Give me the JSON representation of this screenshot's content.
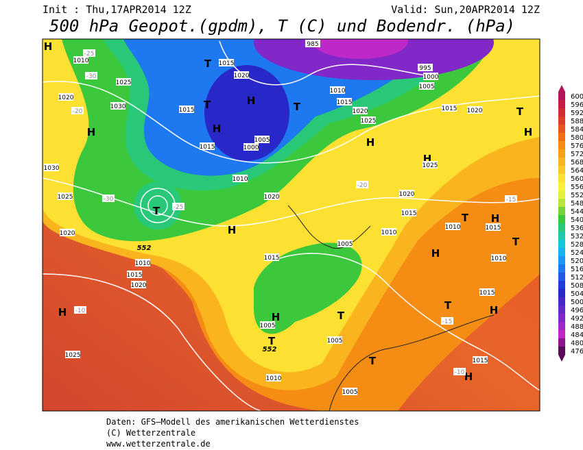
{
  "header": {
    "init": "Init : Thu,17APR2014 12Z",
    "valid": "Valid: Sun,20APR2014 12Z",
    "title": "500 hPa Geopot.(gpdm), T (C) und Bodendr. (hPa)"
  },
  "colorbar": {
    "levels": [
      600,
      596,
      592,
      588,
      584,
      580,
      576,
      572,
      568,
      564,
      560,
      556,
      552,
      548,
      544,
      540,
      536,
      532,
      528,
      524,
      520,
      516,
      512,
      508,
      504,
      500,
      496,
      492,
      488,
      484,
      480,
      476
    ],
    "colors": [
      "#b4145a",
      "#c81e46",
      "#d22d32",
      "#dc3c28",
      "#e6551e",
      "#f06e14",
      "#f58c14",
      "#f8a014",
      "#fab41e",
      "#fcc828",
      "#fde132",
      "#fff03c",
      "#e6f03c",
      "#b4e63c",
      "#78d23c",
      "#3cc83c",
      "#28c878",
      "#1ec8aa",
      "#14c8dc",
      "#14b4f0",
      "#1e96f5",
      "#1e78f0",
      "#1e5ae6",
      "#1e3cdc",
      "#2828c8",
      "#4628c8",
      "#6428c8",
      "#8228c8",
      "#a028c8",
      "#be28c8",
      "#8c148c",
      "#5a0a5a"
    ]
  },
  "map": {
    "labels": [
      "H",
      "1010",
      "1025",
      "1020",
      "1030",
      "H",
      "T",
      "1015",
      "1020",
      "H",
      "T",
      "H",
      "1015",
      "1015",
      "1000",
      "1005",
      "1010",
      "1030",
      "1025",
      "T",
      "1020",
      "H",
      "1020",
      "1015",
      "1020",
      "1010",
      "1015",
      "985",
      "995",
      "1000",
      "1005",
      "1010",
      "1015",
      "1020",
      "1025",
      "T",
      "H",
      "H",
      "1025",
      "1015",
      "1020",
      "T",
      "H",
      "1020",
      "1015",
      "1010",
      "T",
      "H",
      "1010",
      "1015",
      "T",
      "H",
      "1010",
      "1005",
      "H",
      "T",
      "1005",
      "T",
      "1005",
      "T",
      "1010",
      "1005",
      "1015",
      "H",
      "H",
      "T",
      "1015",
      "H",
      "1025",
      "-20",
      "-25",
      "-30",
      "-15",
      "-10",
      "-15",
      "-10",
      "-20",
      "-30",
      "-25",
      "552",
      "552"
    ]
  },
  "footer": {
    "line1": "Daten: GFS–Modell des amerikanischen Wetterdienstes",
    "line2": "(C) Wetterzentrale",
    "line3": "www.wetterzentrale.de"
  }
}
